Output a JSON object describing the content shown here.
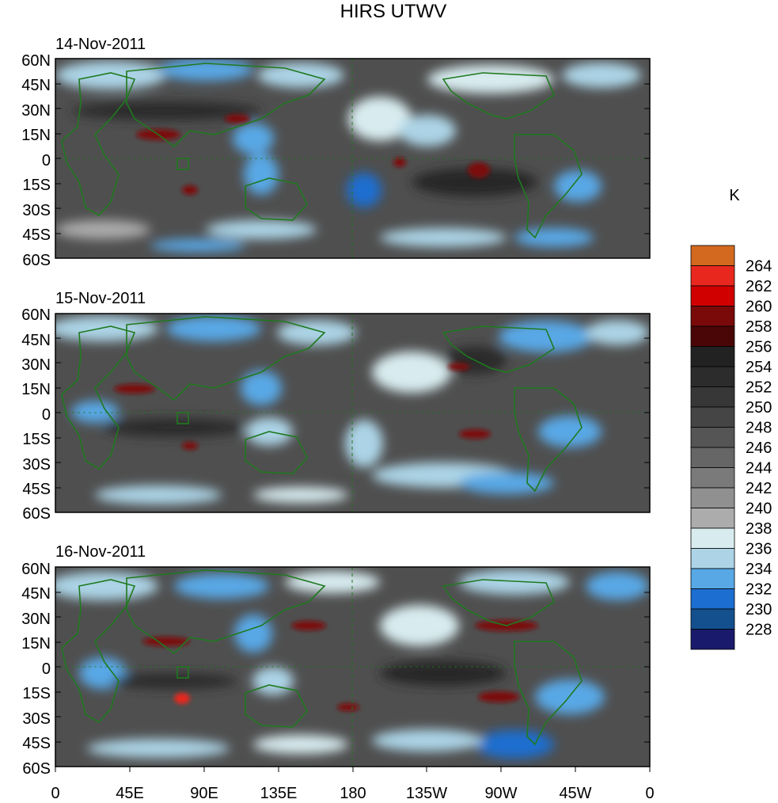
{
  "chart_data": {
    "type": "heatmap",
    "title": "HIRS UTWV",
    "colorbar": {
      "unit": "K",
      "levels": [
        264,
        262,
        260,
        258,
        256,
        254,
        252,
        250,
        248,
        246,
        244,
        242,
        240,
        238,
        236,
        234,
        232,
        230,
        228
      ],
      "colors": [
        "#d2691e",
        "#e8281e",
        "#d00000",
        "#7a0a0a",
        "#4a0606",
        "#222222",
        "#2c2c2c",
        "#373737",
        "#454545",
        "#555555",
        "#666666",
        "#7a7a7a",
        "#909090",
        "#acacac",
        "#d8ecf0",
        "#acd4e6",
        "#58a8e6",
        "#1c6ed0",
        "#14508e",
        "#1a1a6c"
      ]
    },
    "panels": [
      {
        "date": "14-Nov-2011"
      },
      {
        "date": "15-Nov-2011"
      },
      {
        "date": "16-Nov-2011"
      }
    ],
    "y_ticks": [
      "60N",
      "45N",
      "30N",
      "15N",
      "0",
      "15S",
      "30S",
      "45S",
      "60S"
    ],
    "x_ticks": [
      "0",
      "45E",
      "90E",
      "135E",
      "180",
      "135W",
      "90W",
      "45W",
      "0"
    ],
    "xlim": [
      0,
      360
    ],
    "ylim": [
      -60,
      60
    ]
  }
}
